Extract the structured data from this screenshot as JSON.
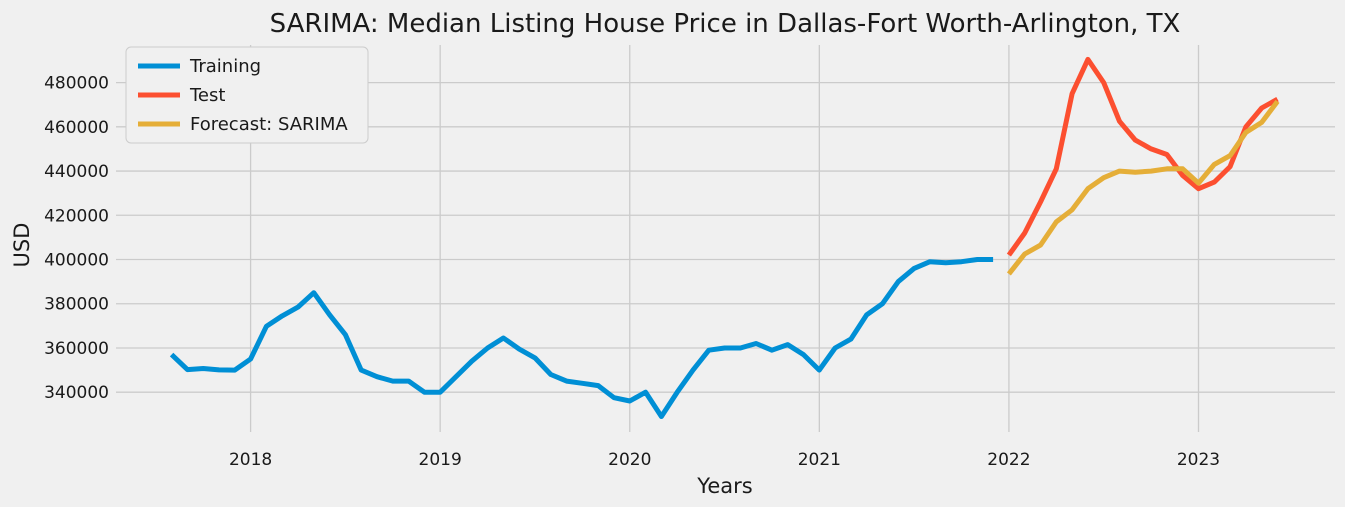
{
  "chart_data": {
    "type": "line",
    "title": "SARIMA: Median Listing House Price in Dallas-Fort Worth-Arlington, TX",
    "xlabel": "Years",
    "ylabel": "USD",
    "xlim": [
      2017.29,
      2023.72
    ],
    "ylim": [
      322000,
      497000
    ],
    "x_ticks": [
      2018,
      2019,
      2020,
      2021,
      2022,
      2023
    ],
    "x_tick_labels": [
      "2018",
      "2019",
      "2020",
      "2021",
      "2022",
      "2023"
    ],
    "y_ticks": [
      340000,
      360000,
      380000,
      400000,
      420000,
      440000,
      460000,
      480000
    ],
    "y_tick_labels": [
      "340000",
      "360000",
      "380000",
      "400000",
      "420000",
      "440000",
      "460000",
      "480000"
    ],
    "grid": true,
    "legend_position": "top-left",
    "series": [
      {
        "name": "Training",
        "color": "#008fd5",
        "x": [
          "2017-08",
          "2017-09",
          "2017-10",
          "2017-11",
          "2017-12",
          "2018-01",
          "2018-02",
          "2018-03",
          "2018-04",
          "2018-05",
          "2018-06",
          "2018-07",
          "2018-08",
          "2018-09",
          "2018-10",
          "2018-11",
          "2018-12",
          "2019-01",
          "2019-02",
          "2019-03",
          "2019-04",
          "2019-05",
          "2019-06",
          "2019-07",
          "2019-08",
          "2019-09",
          "2019-10",
          "2019-11",
          "2019-12",
          "2020-01",
          "2020-02",
          "2020-03",
          "2020-04",
          "2020-05",
          "2020-06",
          "2020-07",
          "2020-08",
          "2020-09",
          "2020-10",
          "2020-11",
          "2020-12",
          "2021-01",
          "2021-02",
          "2021-03",
          "2021-04",
          "2021-05",
          "2021-06",
          "2021-07",
          "2021-08",
          "2021-09",
          "2021-10",
          "2021-11",
          "2021-12"
        ],
        "values": [
          357000,
          350200,
          350700,
          350100,
          350000,
          355000,
          369800,
          374500,
          378500,
          385000,
          375000,
          366000,
          350000,
          347000,
          345000,
          345000,
          340000,
          340000,
          347000,
          354000,
          360000,
          364500,
          359500,
          355500,
          348000,
          345000,
          344000,
          343000,
          337500,
          336000,
          340000,
          329000,
          340000,
          350000,
          359000,
          360000,
          360000,
          362000,
          359000,
          361500,
          357000,
          350000,
          360000,
          364000,
          375000,
          380000,
          390000,
          396000,
          399000,
          398500,
          399000,
          400000,
          400000
        ]
      },
      {
        "name": "Test",
        "color": "#fc4f30",
        "x": [
          "2022-01",
          "2022-02",
          "2022-03",
          "2022-04",
          "2022-05",
          "2022-06",
          "2022-07",
          "2022-08",
          "2022-09",
          "2022-10",
          "2022-11",
          "2022-12",
          "2023-01",
          "2023-02",
          "2023-03",
          "2023-04",
          "2023-05",
          "2023-06"
        ],
        "values": [
          402000,
          412000,
          426000,
          441000,
          475000,
          490500,
          480000,
          462500,
          454000,
          450000,
          447500,
          438000,
          432000,
          435000,
          442000,
          460000,
          468500,
          472500
        ]
      },
      {
        "name": "Forecast: SARIMA",
        "color": "#e5ae38",
        "x": [
          "2022-01",
          "2022-02",
          "2022-03",
          "2022-04",
          "2022-05",
          "2022-06",
          "2022-07",
          "2022-08",
          "2022-09",
          "2022-10",
          "2022-11",
          "2022-12",
          "2023-01",
          "2023-02",
          "2023-03",
          "2023-04",
          "2023-05",
          "2023-06"
        ],
        "values": [
          393500,
          402500,
          406500,
          417000,
          422500,
          432000,
          437000,
          440000,
          439500,
          440000,
          441000,
          441000,
          434500,
          443000,
          447000,
          457500,
          462000,
          471500
        ]
      }
    ]
  }
}
